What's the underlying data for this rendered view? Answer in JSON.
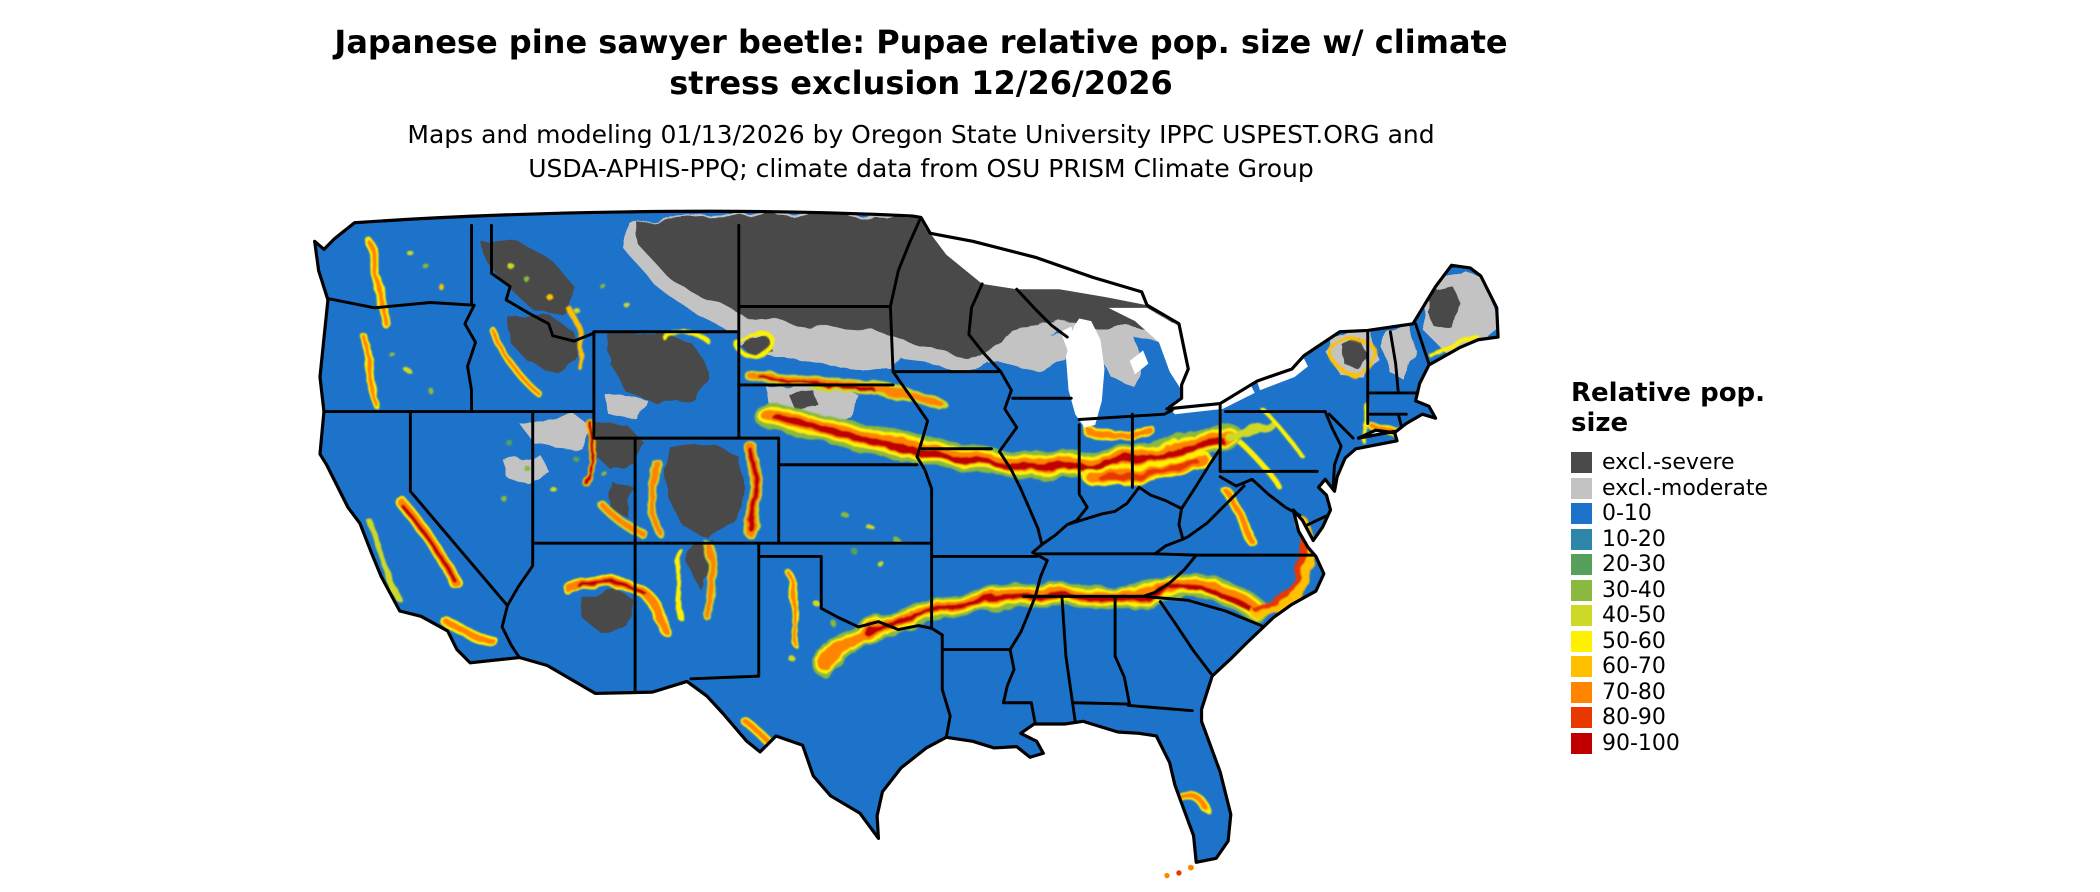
{
  "figure": {
    "title_lines": [
      "Japanese pine sawyer beetle: Pupae relative pop. size w/ climate",
      "stress exclusion 12/26/2026"
    ],
    "subtitle_lines": [
      "Maps and modeling 01/13/2026 by Oregon State University IPPC USPEST.ORG and",
      "USDA-APHIS-PPQ; climate data from OSU PRISM Climate Group"
    ]
  },
  "legend": {
    "title": "Relative pop. size",
    "items": [
      {
        "id": "excl-severe",
        "label": "excl.-severe",
        "color": "#4a4a4a"
      },
      {
        "id": "excl-moderate",
        "label": "excl.-moderate",
        "color": "#c3c3c3"
      },
      {
        "id": "v0-10",
        "label": "0-10",
        "color": "#1d73c9"
      },
      {
        "id": "v10-20",
        "label": "10-20",
        "color": "#2e86ab"
      },
      {
        "id": "v20-30",
        "label": "20-30",
        "color": "#57a05c"
      },
      {
        "id": "v30-40",
        "label": "30-40",
        "color": "#8bb83e"
      },
      {
        "id": "v40-50",
        "label": "40-50",
        "color": "#cdd926"
      },
      {
        "id": "v50-60",
        "label": "50-60",
        "color": "#fff200"
      },
      {
        "id": "v60-70",
        "label": "60-70",
        "color": "#ffc000"
      },
      {
        "id": "v70-80",
        "label": "70-80",
        "color": "#ff8400"
      },
      {
        "id": "v80-90",
        "label": "80-90",
        "color": "#e83800"
      },
      {
        "id": "v90-100",
        "label": "90-100",
        "color": "#c00000"
      }
    ]
  },
  "map": {
    "area": "Continental United States with state boundaries",
    "regions": [
      {
        "name": "northern-plains-and-upper-great-lakes",
        "category": "excl.-severe"
      },
      {
        "name": "transition-band-south-of-exclusion-zone",
        "category": "excl.-moderate"
      },
      {
        "name": "rocky-mountain-and-sierra-highlands",
        "category": "excl.-severe / excl.-moderate"
      },
      {
        "name": "central-belt-nebraska-to-ohio-valley",
        "category": "50-100"
      },
      {
        "name": "southern-belt-texas-to-carolinas-piedmont",
        "category": "50-100"
      },
      {
        "name": "western-foothill-fringes",
        "category": "30-90"
      },
      {
        "name": "lowland-background",
        "category": "0-10"
      },
      {
        "name": "northern-new-england",
        "category": "excl.-moderate / excl.-severe"
      }
    ]
  }
}
